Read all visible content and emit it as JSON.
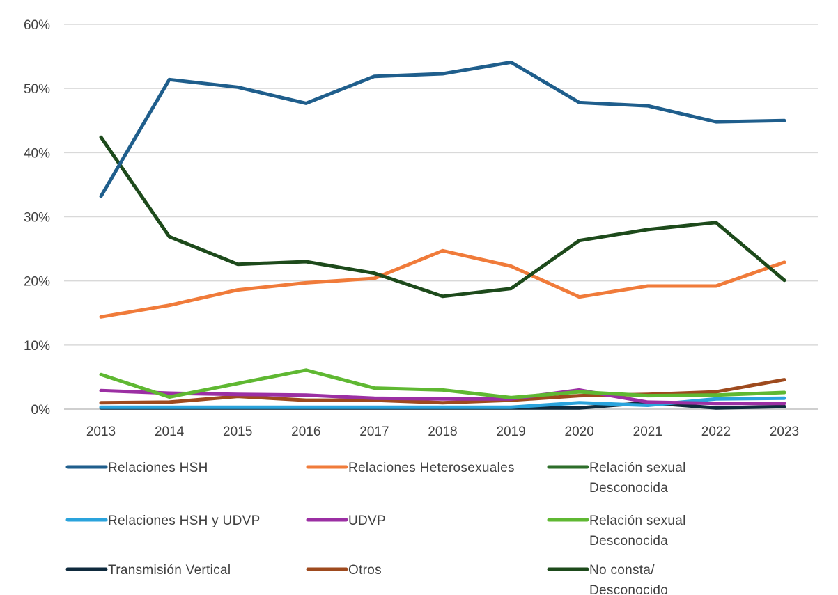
{
  "chart_data": {
    "type": "line",
    "title": "",
    "xlabel": "",
    "ylabel": "",
    "ylim": [
      0,
      60
    ],
    "y_ticks": [
      "0%",
      "10%",
      "20%",
      "30%",
      "40%",
      "50%",
      "60%"
    ],
    "grid": "horizontal",
    "legend_position": "bottom",
    "categories": [
      "2013",
      "2014",
      "2015",
      "2016",
      "2017",
      "2018",
      "2019",
      "2020",
      "2021",
      "2022",
      "2023"
    ],
    "series": [
      {
        "name": "Relaciones HSH",
        "color": "#1f5e8c",
        "values": [
          33.2,
          51.4,
          50.2,
          47.7,
          51.9,
          52.3,
          54.1,
          47.8,
          47.3,
          44.8,
          45.0
        ]
      },
      {
        "name": "Relaciones Heterosexuales",
        "color": "#f07b3a",
        "values": [
          14.4,
          16.2,
          18.6,
          19.7,
          20.4,
          24.7,
          22.3,
          17.5,
          19.2,
          19.2,
          22.9
        ]
      },
      {
        "name": "Relación sexual Desconocida",
        "color": "#2d6e2a",
        "values": [
          null,
          null,
          null,
          null,
          null,
          null,
          null,
          null,
          null,
          null,
          null
        ]
      },
      {
        "name": "Relaciones HSH y UDVP",
        "color": "#2aa3dc",
        "values": [
          0.3,
          0.3,
          0.3,
          0.3,
          0.3,
          0.3,
          0.3,
          1.0,
          0.6,
          1.6,
          1.7
        ]
      },
      {
        "name": "UDVP",
        "color": "#9b2fa3",
        "values": [
          2.9,
          2.5,
          2.3,
          2.2,
          1.7,
          1.6,
          1.6,
          3.0,
          1.1,
          0.9,
          0.9
        ]
      },
      {
        "name": "Relación sexual Desconocida",
        "color": "#5fb832",
        "values": [
          5.4,
          1.9,
          4.0,
          6.1,
          3.3,
          3.0,
          1.8,
          2.7,
          2.1,
          2.2,
          2.6
        ]
      },
      {
        "name": "Transmisión Vertical",
        "color": "#0f2a3d",
        "values": [
          0.2,
          0.2,
          0.2,
          0.2,
          0.2,
          0.2,
          0.2,
          0.2,
          1.0,
          0.2,
          0.4
        ]
      },
      {
        "name": "Otros",
        "color": "#9e4a1e",
        "values": [
          1.0,
          1.1,
          2.0,
          1.4,
          1.4,
          1.0,
          1.4,
          2.1,
          2.3,
          2.7,
          4.6
        ]
      },
      {
        "name": "No consta/ Desconocido",
        "color": "#1d4a1b",
        "values": [
          42.4,
          26.9,
          22.6,
          23.0,
          21.2,
          17.6,
          18.8,
          26.3,
          28.0,
          29.1,
          20.1
        ]
      }
    ]
  }
}
